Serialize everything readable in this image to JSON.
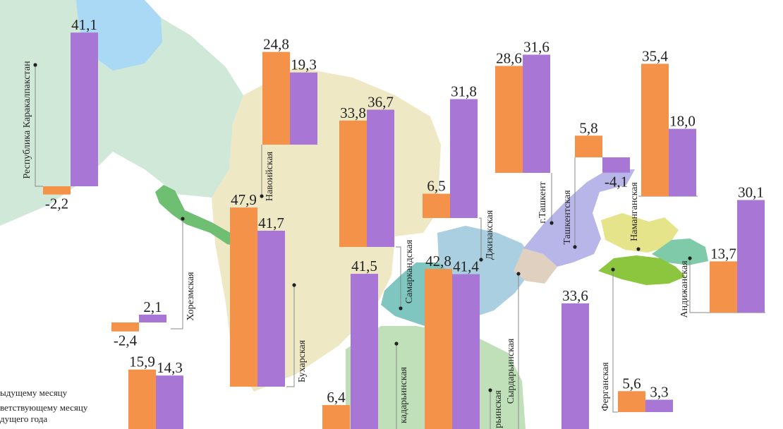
{
  "colors": {
    "prev_month": "#f5924a",
    "prev_year": "#a877d6",
    "water": "#a9d9f5",
    "karakalpak": "#cfe8d8",
    "navoi_bukhara": "#efe8c4",
    "khorezm": "#6fbf73",
    "samarkand": "#7fc6c0",
    "kashkadarya": "#bfe0b8",
    "jizzakh": "#a9cfe0",
    "tashkent": "#b8b6e8",
    "namangan": "#e6e48a",
    "fergana": "#8cc63f",
    "andijan": "#7fcaa8",
    "syrdarya": "#e0d0c0"
  },
  "legend": {
    "item1": "ыдущему месяцу",
    "item2_line1": "ветствующему месяцу",
    "item2_line2": "дущего года"
  },
  "chart_data": {
    "type": "bar",
    "value_unit": "percent change",
    "series_order": [
      "к предыдущему месяцу",
      "к соответствующему месяцу предыдущего года"
    ],
    "regions": [
      {
        "name": "Республика Каракалпакстан",
        "values": [
          -2.2,
          41.1
        ],
        "labels": [
          "-2,2",
          "41,1"
        ]
      },
      {
        "name": "Хорезмская",
        "values": [
          -2.4,
          2.1
        ],
        "labels": [
          "-2,4",
          "2,1"
        ]
      },
      {
        "name": "Навоийская",
        "values": [
          24.8,
          19.3
        ],
        "labels": [
          "24,8",
          "19,3"
        ]
      },
      {
        "name": "Бухарская",
        "values": [
          47.9,
          41.7
        ],
        "labels": [
          "47,9",
          "41,7"
        ]
      },
      {
        "name": "Самаркандская",
        "values": [
          33.8,
          36.7
        ],
        "labels": [
          "33,8",
          "36,7"
        ]
      },
      {
        "name": "Джизакская",
        "values": [
          6.5,
          31.8
        ],
        "labels": [
          "6,5",
          "31,8"
        ]
      },
      {
        "name": "г.Ташкент",
        "values": [
          28.6,
          31.6
        ],
        "labels": [
          "28,6",
          "31,6"
        ]
      },
      {
        "name": "Ташкентская",
        "values": [
          5.8,
          -4.1
        ],
        "labels": [
          "5,8",
          "-4,1"
        ]
      },
      {
        "name": "Наманганская",
        "values": [
          35.4,
          18.0
        ],
        "labels": [
          "35,4",
          "18,0"
        ]
      },
      {
        "name": "Андижанская",
        "values": [
          13.7,
          30.1
        ],
        "labels": [
          "13,7",
          "30,1"
        ]
      },
      {
        "name": "Ферганская",
        "values": [
          5.6,
          3.3
        ],
        "labels": [
          "5,6",
          "3,3"
        ]
      },
      {
        "name": "Сырдарьинская",
        "values": [
          42.8,
          41.4
        ],
        "labels": [
          "42,8",
          "41,4"
        ]
      },
      {
        "name": "Кашкадарьинская",
        "values": [
          null,
          41.5
        ],
        "labels": [
          "",
          "41,5"
        ],
        "name_label": "кадарьинская"
      },
      {
        "name": "Сурхандарьинская",
        "values": [
          6.4,
          null
        ],
        "labels": [
          "6,4",
          ""
        ],
        "name_label": "рьинская"
      },
      {
        "name": "unlabeled (cut off)",
        "values": [
          null,
          33.6
        ],
        "labels": [
          "",
          "33,6"
        ],
        "name_label": ""
      },
      {
        "name": "unlabeled (cut off)",
        "values": [
          15.9,
          14.3
        ],
        "labels": [
          "15,9",
          "14,3"
        ],
        "name_label": ""
      }
    ]
  }
}
